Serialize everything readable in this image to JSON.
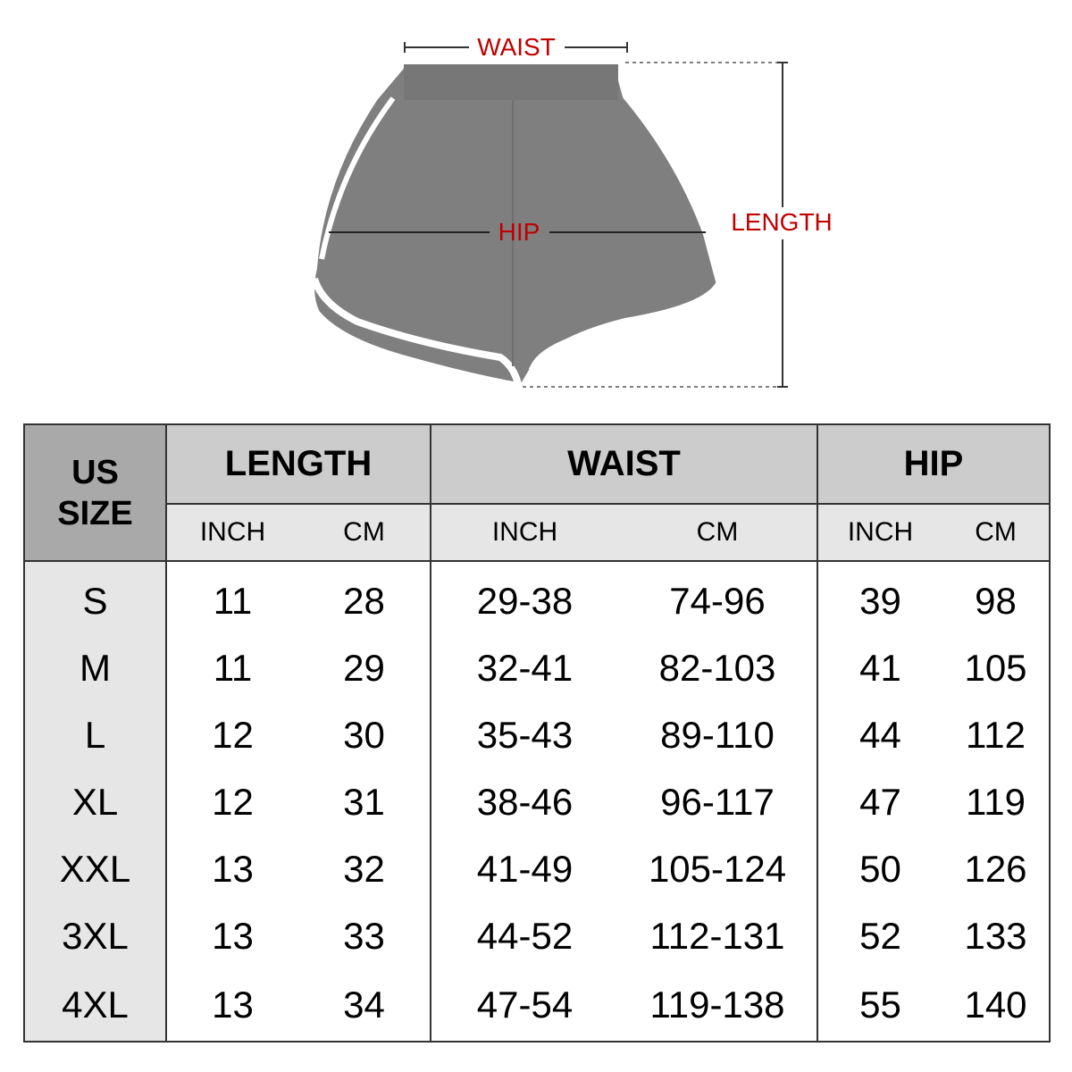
{
  "diagram": {
    "labels": {
      "waist": "WAIST",
      "hip": "HIP",
      "length": "LENGTH"
    },
    "colors": {
      "label": "#c00000",
      "shorts": "#7f7f7f",
      "trim": "#ffffff"
    }
  },
  "table": {
    "size_header": [
      "US",
      "SIZE"
    ],
    "groups": [
      "LENGTH",
      "WAIST",
      "HIP"
    ],
    "units": [
      "INCH",
      "CM",
      "INCH",
      "CM",
      "INCH",
      "CM"
    ],
    "rows": [
      {
        "size": "S",
        "values": [
          "11",
          "28",
          "29-38",
          "74-96",
          "39",
          "98"
        ]
      },
      {
        "size": "M",
        "values": [
          "11",
          "29",
          "32-41",
          "82-103",
          "41",
          "105"
        ]
      },
      {
        "size": "L",
        "values": [
          "12",
          "30",
          "35-43",
          "89-110",
          "44",
          "112"
        ]
      },
      {
        "size": "XL",
        "values": [
          "12",
          "31",
          "38-46",
          "96-117",
          "47",
          "119"
        ]
      },
      {
        "size": "XXL",
        "values": [
          "13",
          "32",
          "41-49",
          "105-124",
          "50",
          "126"
        ]
      },
      {
        "size": "3XL",
        "values": [
          "13",
          "33",
          "44-52",
          "112-131",
          "52",
          "133"
        ]
      },
      {
        "size": "4XL",
        "values": [
          "13",
          "34",
          "47-54",
          "119-138",
          "55",
          "140"
        ]
      }
    ]
  }
}
